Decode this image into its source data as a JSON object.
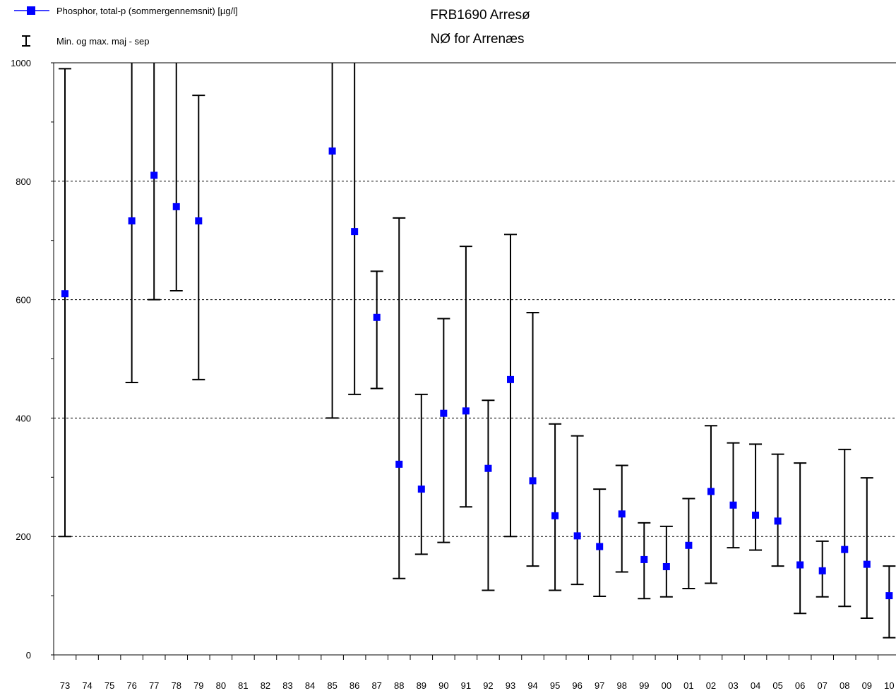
{
  "chart_data": {
    "type": "scatter",
    "title": "FRB1690 Arresø",
    "subtitle": "NØ for Arrenæs",
    "xlabel": "",
    "ylabel": "",
    "ylim": [
      0,
      1000
    ],
    "y_ticks": [
      0,
      200,
      400,
      600,
      800,
      1000
    ],
    "y_tick_labels": [
      "0",
      "200",
      "400",
      "600",
      "800",
      "1000"
    ],
    "grid": "horizontal dashed at 200, 400, 600, 800",
    "legend": {
      "placement": "top-left",
      "entries": [
        {
          "label": "Phosphor, total-p (sommergennemsnit) [µg/l]",
          "symbol": "blue-square-line"
        },
        {
          "label": "Min. og max. maj - sep",
          "symbol": "error-bar"
        }
      ]
    },
    "categories": [
      "73",
      "74",
      "75",
      "76",
      "77",
      "78",
      "79",
      "80",
      "81",
      "82",
      "83",
      "84",
      "85",
      "86",
      "87",
      "88",
      "89",
      "90",
      "91",
      "92",
      "93",
      "94",
      "95",
      "96",
      "97",
      "98",
      "99",
      "00",
      "01",
      "02",
      "03",
      "04",
      "05",
      "06",
      "07",
      "08",
      "09",
      "10"
    ],
    "series": [
      {
        "name": "Phosphor, total-p (sommergennemsnit) [µg/l]",
        "color": "#0000ff",
        "values": [
          610,
          null,
          null,
          733,
          810,
          757,
          733,
          null,
          null,
          null,
          null,
          null,
          851,
          715,
          570,
          322,
          280,
          408,
          412,
          315,
          465,
          294,
          235,
          201,
          183,
          238,
          161,
          149,
          185,
          276,
          253,
          236,
          226,
          152,
          142,
          178,
          153,
          100
        ]
      },
      {
        "name": "Min. og max. maj - sep",
        "color": "#000000",
        "min": [
          200,
          null,
          null,
          460,
          600,
          615,
          465,
          null,
          null,
          null,
          null,
          null,
          400,
          440,
          450,
          129,
          170,
          190,
          250,
          109,
          200,
          150,
          109,
          119,
          99,
          140,
          95,
          98,
          112,
          121,
          181,
          177,
          150,
          70,
          98,
          82,
          62,
          29
        ],
        "max": [
          990,
          null,
          null,
          1000,
          1000,
          1000,
          945,
          null,
          null,
          null,
          null,
          null,
          1000,
          1000,
          648,
          738,
          440,
          568,
          690,
          430,
          710,
          578,
          390,
          370,
          280,
          320,
          223,
          217,
          264,
          387,
          358,
          356,
          339,
          324,
          192,
          347,
          299,
          150
        ]
      }
    ]
  }
}
